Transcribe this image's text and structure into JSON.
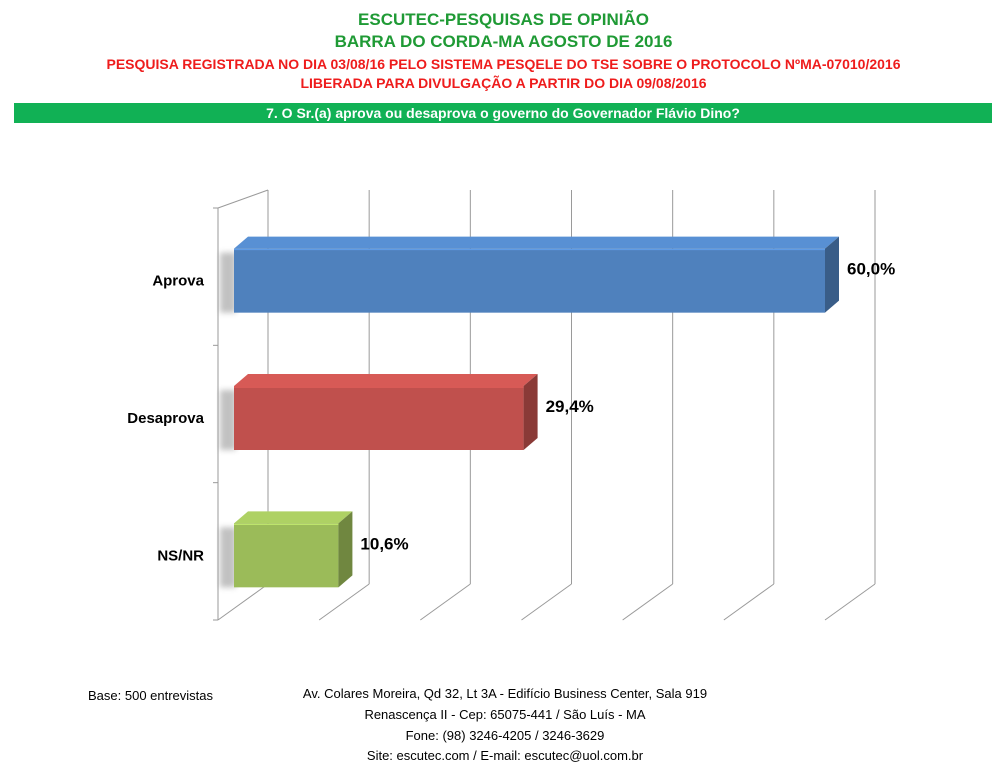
{
  "header": {
    "title": "ESCUTEC-PESQUISAS DE OPINIÃO",
    "subtitle": "BARRA DO CORDA-MA AGOSTO DE 2016",
    "registration": "PESQUISA REGISTRADA NO DIA 03/08/16 PELO SISTEMA PESQELE DO TSE SOBRE O PROTOCOLO NºMA-07010/2016",
    "release": "LIBERADA PARA DIVULGAÇÃO A PARTIR DO DIA 09/08/2016"
  },
  "question": "7. O Sr.(a) aprova ou desaprova o governo do Governador Flávio Dino?",
  "colors": {
    "header_green": "#1f9a35",
    "header_red": "#ee1c1c",
    "banner_green": "#11b155",
    "bar_blue": "#4f81bd",
    "bar_red": "#c0504d",
    "bar_green": "#9bbb59"
  },
  "chart_data": {
    "type": "bar",
    "orientation": "horizontal",
    "style": "3d",
    "categories": [
      "Aprova",
      "Desaprova",
      "NS/NR"
    ],
    "values": [
      60.0,
      29.4,
      10.6
    ],
    "value_labels": [
      "60,0%",
      "29,4%",
      "10,6%"
    ],
    "bar_colors": [
      "#4f81bd",
      "#c0504d",
      "#9bbb59"
    ],
    "xlim": [
      0,
      60
    ],
    "grid": true,
    "legend": "none"
  },
  "footer": {
    "base": "Base: 500 entrevistas",
    "address_line1": "Av. Colares Moreira, Qd 32, Lt 3A - Edifício Business Center, Sala 919",
    "address_line2": "Renascença II - Cep: 65075-441 / São Luís - MA",
    "phone": "Fone: (98) 3246-4205 / 3246-3629",
    "web": "Site: escutec.com / E-mail: escutec@uol.com.br"
  }
}
